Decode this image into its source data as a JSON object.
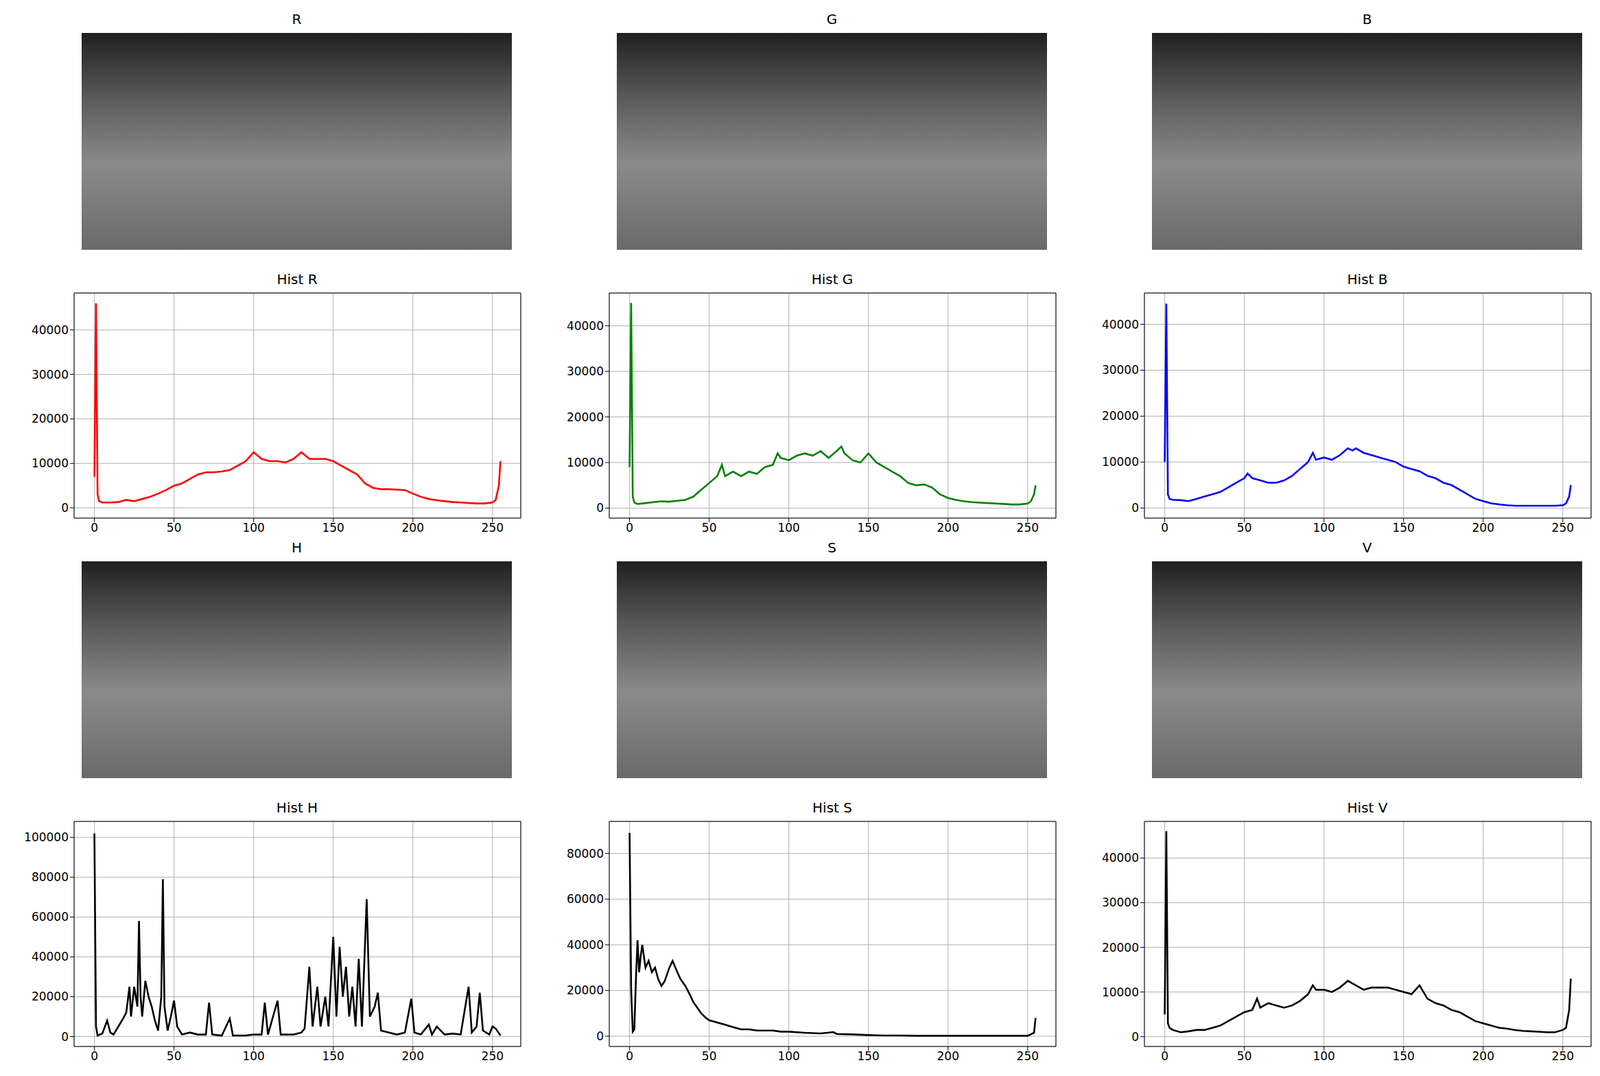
{
  "chart_data": [
    {
      "type": "image",
      "title": "R"
    },
    {
      "type": "image",
      "title": "G"
    },
    {
      "type": "image",
      "title": "B"
    },
    {
      "type": "line",
      "title": "Hist R",
      "color": "#ff0000",
      "grid": true,
      "xlim": [
        -12.75,
        267.75
      ],
      "xticks": [
        0,
        50,
        100,
        150,
        200,
        250
      ],
      "ylim": [
        -2300,
        48300
      ],
      "yticks": [
        0,
        10000,
        20000,
        30000,
        40000
      ],
      "x": [
        0,
        1,
        2,
        3,
        5,
        10,
        15,
        20,
        25,
        30,
        35,
        40,
        45,
        50,
        55,
        60,
        65,
        70,
        75,
        80,
        85,
        90,
        95,
        100,
        105,
        110,
        115,
        120,
        125,
        130,
        135,
        140,
        145,
        150,
        155,
        160,
        165,
        170,
        175,
        180,
        185,
        190,
        195,
        200,
        205,
        210,
        215,
        220,
        225,
        230,
        235,
        240,
        245,
        250,
        252,
        254,
        255
      ],
      "values": [
        7000,
        46000,
        3000,
        1500,
        1200,
        1200,
        1300,
        1800,
        1500,
        2000,
        2500,
        3200,
        4000,
        5000,
        5500,
        6500,
        7500,
        8000,
        8000,
        8200,
        8500,
        9500,
        10500,
        12500,
        11000,
        10500,
        10500,
        10200,
        11000,
        12500,
        11000,
        11000,
        11000,
        10500,
        9500,
        8500,
        7500,
        5500,
        4500,
        4200,
        4200,
        4100,
        4000,
        3200,
        2500,
        2000,
        1700,
        1500,
        1300,
        1200,
        1100,
        1000,
        1000,
        1200,
        1800,
        5000,
        10500
      ]
    },
    {
      "type": "line",
      "title": "Hist G",
      "color": "#008000",
      "grid": true,
      "xlim": [
        -12.75,
        267.75
      ],
      "xticks": [
        0,
        50,
        100,
        150,
        200,
        250
      ],
      "ylim": [
        -2200,
        47200
      ],
      "yticks": [
        0,
        10000,
        20000,
        30000,
        40000
      ],
      "x": [
        0,
        1,
        2,
        3,
        5,
        10,
        15,
        20,
        25,
        30,
        35,
        40,
        45,
        50,
        55,
        58,
        60,
        65,
        70,
        75,
        80,
        85,
        90,
        93,
        95,
        100,
        105,
        110,
        115,
        120,
        125,
        130,
        133,
        135,
        140,
        145,
        150,
        155,
        160,
        165,
        170,
        175,
        180,
        185,
        190,
        195,
        200,
        205,
        210,
        215,
        220,
        225,
        230,
        235,
        240,
        245,
        250,
        252,
        254,
        255
      ],
      "values": [
        9000,
        45000,
        2500,
        1200,
        900,
        1100,
        1300,
        1500,
        1400,
        1600,
        1800,
        2500,
        4000,
        5500,
        7000,
        9500,
        7000,
        8000,
        7000,
        8000,
        7500,
        9000,
        9500,
        12000,
        11000,
        10500,
        11500,
        12000,
        11500,
        12500,
        11000,
        12500,
        13500,
        12000,
        10500,
        10000,
        12000,
        10000,
        9000,
        8000,
        7000,
        5500,
        5000,
        5200,
        4500,
        3000,
        2200,
        1800,
        1500,
        1300,
        1200,
        1100,
        1000,
        900,
        800,
        800,
        1000,
        1500,
        3000,
        5000
      ]
    },
    {
      "type": "line",
      "title": "Hist B",
      "color": "#0000ff",
      "grid": true,
      "xlim": [
        -12.75,
        267.75
      ],
      "xticks": [
        0,
        50,
        100,
        150,
        200,
        250
      ],
      "ylim": [
        -2200,
        46800
      ],
      "yticks": [
        0,
        10000,
        20000,
        30000,
        40000
      ],
      "x": [
        0,
        1,
        2,
        3,
        5,
        10,
        15,
        20,
        25,
        30,
        35,
        40,
        45,
        50,
        52,
        55,
        60,
        65,
        70,
        75,
        80,
        85,
        90,
        93,
        95,
        100,
        105,
        110,
        115,
        118,
        120,
        125,
        130,
        135,
        140,
        145,
        150,
        155,
        160,
        165,
        170,
        175,
        180,
        185,
        190,
        195,
        200,
        205,
        210,
        215,
        220,
        230,
        240,
        245,
        250,
        252,
        254,
        255
      ],
      "values": [
        10000,
        44500,
        3000,
        2000,
        1800,
        1700,
        1500,
        2000,
        2500,
        3000,
        3500,
        4500,
        5500,
        6500,
        7500,
        6500,
        6000,
        5500,
        5500,
        6000,
        7000,
        8500,
        10000,
        12000,
        10500,
        11000,
        10500,
        11500,
        13000,
        12500,
        13000,
        12000,
        11500,
        11000,
        10500,
        10000,
        9000,
        8500,
        8000,
        7000,
        6500,
        5500,
        5000,
        4000,
        3000,
        2000,
        1500,
        1000,
        800,
        600,
        500,
        500,
        500,
        500,
        600,
        1000,
        2500,
        5000
      ]
    },
    {
      "type": "image",
      "title": "H"
    },
    {
      "type": "image",
      "title": "S"
    },
    {
      "type": "image",
      "title": "V"
    },
    {
      "type": "line",
      "title": "Hist H",
      "color": "#000000",
      "grid": true,
      "xlim": [
        -12.75,
        267.75
      ],
      "xticks": [
        0,
        50,
        100,
        150,
        200,
        250
      ],
      "ylim": [
        -5000,
        108000
      ],
      "yticks": [
        0,
        20000,
        40000,
        60000,
        80000,
        100000
      ],
      "x": [
        0,
        1,
        2,
        5,
        8,
        10,
        12,
        15,
        18,
        20,
        22,
        23,
        25,
        27,
        28,
        29,
        30,
        32,
        34,
        36,
        38,
        40,
        42,
        43,
        44,
        46,
        48,
        50,
        52,
        55,
        60,
        65,
        70,
        72,
        74,
        80,
        85,
        87,
        90,
        95,
        100,
        105,
        107,
        109,
        115,
        117,
        120,
        125,
        130,
        132,
        135,
        137,
        140,
        142,
        145,
        147,
        150,
        152,
        154,
        156,
        158,
        160,
        162,
        164,
        166,
        168,
        171,
        173,
        176,
        178,
        180,
        185,
        190,
        195,
        199,
        201,
        205,
        210,
        212,
        215,
        220,
        225,
        230,
        235,
        237,
        240,
        242,
        244,
        248,
        250,
        252,
        255
      ],
      "values": [
        102000,
        5000,
        500,
        1500,
        8000,
        2000,
        1000,
        5000,
        9000,
        12000,
        25000,
        10000,
        25000,
        15000,
        58000,
        20000,
        10000,
        28000,
        20000,
        15000,
        8000,
        3000,
        20000,
        79000,
        15000,
        3000,
        10000,
        18000,
        5000,
        1000,
        2000,
        1000,
        1000,
        17000,
        1000,
        500,
        9000,
        500,
        500,
        500,
        1000,
        1000,
        17000,
        1000,
        18000,
        1000,
        1000,
        1000,
        2000,
        4000,
        35000,
        5000,
        25000,
        5000,
        20000,
        5000,
        50000,
        10000,
        45000,
        20000,
        35000,
        10000,
        25000,
        5000,
        39000,
        5000,
        69000,
        10000,
        15000,
        22000,
        3000,
        2000,
        1000,
        2000,
        19000,
        2000,
        1000,
        6000,
        1000,
        5000,
        1000,
        1500,
        1000,
        25000,
        2000,
        5000,
        22000,
        3000,
        1000,
        5000,
        4000,
        500
      ]
    },
    {
      "type": "line",
      "title": "Hist S",
      "color": "#000000",
      "grid": true,
      "xlim": [
        -12.75,
        267.75
      ],
      "xticks": [
        0,
        50,
        100,
        150,
        200,
        250
      ],
      "ylim": [
        -4500,
        94000
      ],
      "yticks": [
        0,
        20000,
        40000,
        60000,
        80000
      ],
      "x": [
        0,
        1,
        2,
        3,
        4,
        5,
        6,
        7,
        8,
        10,
        12,
        14,
        16,
        18,
        20,
        22,
        25,
        27,
        30,
        32,
        35,
        38,
        40,
        43,
        45,
        48,
        50,
        55,
        60,
        65,
        70,
        75,
        80,
        85,
        90,
        95,
        100,
        110,
        120,
        128,
        130,
        140,
        150,
        160,
        170,
        180,
        190,
        200,
        210,
        220,
        230,
        240,
        250,
        254,
        255
      ],
      "values": [
        89000,
        20000,
        2000,
        3000,
        25000,
        42000,
        28000,
        35000,
        40000,
        30000,
        33000,
        28000,
        30000,
        25000,
        22000,
        24000,
        30000,
        33000,
        28000,
        25000,
        22000,
        18000,
        15000,
        12000,
        10000,
        8000,
        7000,
        6000,
        5000,
        4000,
        3000,
        3000,
        2500,
        2500,
        2500,
        2000,
        2000,
        1500,
        1200,
        1800,
        1000,
        800,
        500,
        300,
        300,
        200,
        200,
        200,
        200,
        200,
        200,
        200,
        200,
        1500,
        8000
      ]
    },
    {
      "type": "line",
      "title": "Hist V",
      "color": "#000000",
      "grid": true,
      "xlim": [
        -12.75,
        267.75
      ],
      "xticks": [
        0,
        50,
        100,
        150,
        200,
        250
      ],
      "ylim": [
        -2200,
        48200
      ],
      "yticks": [
        0,
        10000,
        20000,
        30000,
        40000
      ],
      "x": [
        0,
        1,
        2,
        3,
        5,
        10,
        15,
        20,
        25,
        30,
        35,
        40,
        45,
        50,
        55,
        58,
        60,
        65,
        70,
        75,
        80,
        85,
        90,
        93,
        95,
        100,
        105,
        110,
        115,
        120,
        125,
        130,
        135,
        140,
        145,
        150,
        155,
        160,
        165,
        170,
        175,
        180,
        185,
        190,
        195,
        200,
        205,
        210,
        215,
        220,
        225,
        230,
        235,
        240,
        245,
        250,
        252,
        254,
        255
      ],
      "values": [
        5000,
        46000,
        3000,
        2000,
        1500,
        1000,
        1200,
        1500,
        1500,
        2000,
        2500,
        3500,
        4500,
        5500,
        6000,
        8500,
        6500,
        7500,
        7000,
        6500,
        7000,
        8000,
        9500,
        11500,
        10500,
        10500,
        10000,
        11000,
        12500,
        11500,
        10500,
        11000,
        11000,
        11000,
        10500,
        10000,
        9500,
        11500,
        8500,
        7500,
        7000,
        6000,
        5500,
        4500,
        3500,
        3000,
        2500,
        2000,
        1800,
        1500,
        1300,
        1200,
        1100,
        1000,
        1000,
        1500,
        2000,
        6000,
        13000
      ]
    }
  ]
}
